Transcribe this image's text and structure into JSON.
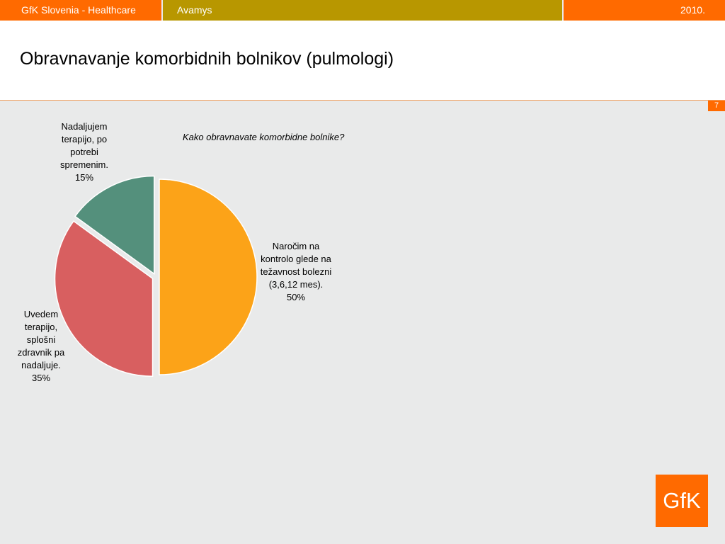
{
  "header": {
    "left_text": "GfK Slovenia - Healthcare",
    "middle_text": "Avamys",
    "right_text": "2010."
  },
  "page": {
    "title": "Obravnavanje komorbidnih bolnikov (pulmologi)",
    "number": "7",
    "logo_text": "GfK"
  },
  "chart_data": {
    "type": "pie",
    "question": "Kako obravnavate komorbidne bolnike?",
    "slices": [
      {
        "label": "Naročim na kontrolo glede na težavnost bolezni (3,6,12 mes).",
        "value": 50,
        "value_label": "50%",
        "color": "#fca318"
      },
      {
        "label": "Uvedem terapijo, splošni zdravnik pa nadaljuje.",
        "value": 35,
        "value_label": "35%",
        "color": "#d85f60"
      },
      {
        "label": "Nadaljujem terapijo, po potrebi spremenim.",
        "value": 15,
        "value_label": "15%",
        "color": "#54907c"
      }
    ]
  }
}
